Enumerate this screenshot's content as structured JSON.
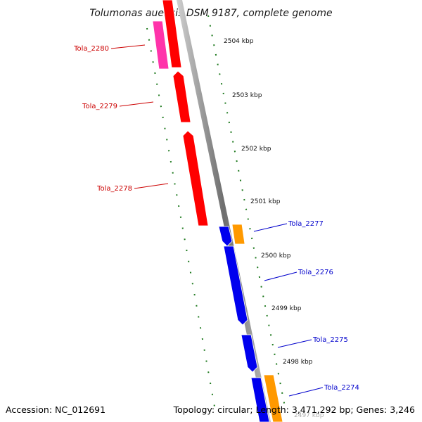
{
  "title": "Tolumonas auensis DSM 9187, complete genome",
  "ticks": [
    "2504 kbp",
    "2503 kbp",
    "2502 kbp",
    "2501 kbp",
    "2500 kbp",
    "2499 kbp",
    "2498 kbp",
    "2497 kbp"
  ],
  "genes": [
    {
      "name": "Tola_2280",
      "strand": "reverse"
    },
    {
      "name": "Tola_2279",
      "strand": "reverse"
    },
    {
      "name": "Tola_2278",
      "strand": "reverse"
    },
    {
      "name": "Tola_2277",
      "strand": "forward"
    },
    {
      "name": "Tola_2276",
      "strand": "forward"
    },
    {
      "name": "Tola_2275",
      "strand": "forward"
    },
    {
      "name": "Tola_2274",
      "strand": "forward"
    }
  ],
  "footer": {
    "accession": "Accession: NC_012691",
    "summary": "Topology: circular; Length: 3,471,292 bp; Genes: 3,246"
  },
  "colors": {
    "reverse_gene": "#ff0000",
    "reverse_gene_alt": "#ff33aa",
    "forward_gene": "#0000ee",
    "forward_gene_alt": "#ff9900",
    "reverse_label": "#cc0000",
    "forward_label": "#0000cc",
    "gc_ticks": "#1f7a1f",
    "backbone": "#888888"
  }
}
